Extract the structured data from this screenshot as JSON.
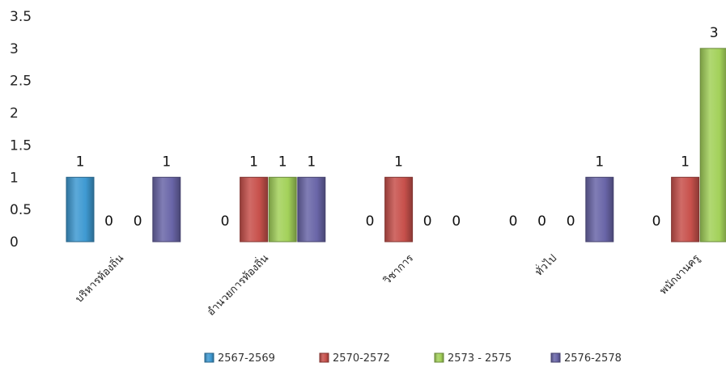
{
  "chart_data": {
    "type": "bar",
    "title": "",
    "xlabel": "",
    "ylabel": "",
    "ylim": [
      0,
      3.5
    ],
    "yticks": [
      "0",
      "0.5",
      "1",
      "1.5",
      "2",
      "2.5",
      "3",
      "3.5"
    ],
    "grid": false,
    "legend_position": "bottom",
    "categories": [
      "บริหารท้องถิ่น",
      "อำนวยการท้องถิ่น",
      "วิชาการ",
      "ทั่วไป",
      "พนักงานครู"
    ],
    "series": [
      {
        "name": "2567-2569",
        "color": "#3f9ad2",
        "values": [
          1,
          0,
          0,
          0,
          0
        ]
      },
      {
        "name": "2570-2572",
        "color": "#c8514c",
        "values": [
          0,
          1,
          1,
          0,
          1
        ]
      },
      {
        "name": "2573 - 2575",
        "color": "#a3d15a",
        "values": [
          0,
          1,
          0,
          0,
          3
        ]
      },
      {
        "name": "2576-2578",
        "color": "#6a66a8",
        "values": [
          1,
          1,
          0,
          1,
          0
        ]
      }
    ]
  }
}
